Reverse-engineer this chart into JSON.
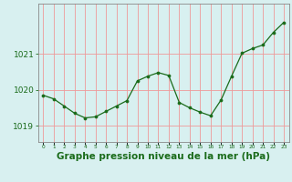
{
  "x": [
    0,
    1,
    2,
    3,
    4,
    5,
    6,
    7,
    8,
    9,
    10,
    11,
    12,
    13,
    14,
    15,
    16,
    17,
    18,
    19,
    20,
    21,
    22,
    23
  ],
  "y": [
    1019.85,
    1019.75,
    1019.55,
    1019.35,
    1019.22,
    1019.25,
    1019.4,
    1019.55,
    1019.7,
    1020.25,
    1020.38,
    1020.48,
    1020.4,
    1019.65,
    1019.5,
    1019.38,
    1019.28,
    1019.72,
    1020.38,
    1021.02,
    1021.15,
    1021.25,
    1021.6,
    1021.88
  ],
  "line_color": "#1a6b1a",
  "marker": "o",
  "marker_size": 2.2,
  "bg_color": "#d8f0f0",
  "grid_color": "#ee9999",
  "axis_color": "#1a6b1a",
  "title": "Graphe pression niveau de la mer (hPa)",
  "title_color": "#1a6b1a",
  "title_fontsize": 7.5,
  "ylabel_ticks": [
    1019,
    1020,
    1021
  ],
  "xlim": [
    -0.5,
    23.5
  ],
  "ylim": [
    1018.55,
    1022.4
  ],
  "xtick_labels": [
    "0",
    "1",
    "2",
    "3",
    "4",
    "5",
    "6",
    "7",
    "8",
    "9",
    "10",
    "11",
    "12",
    "13",
    "14",
    "15",
    "16",
    "17",
    "18",
    "19",
    "20",
    "21",
    "22",
    "23"
  ]
}
